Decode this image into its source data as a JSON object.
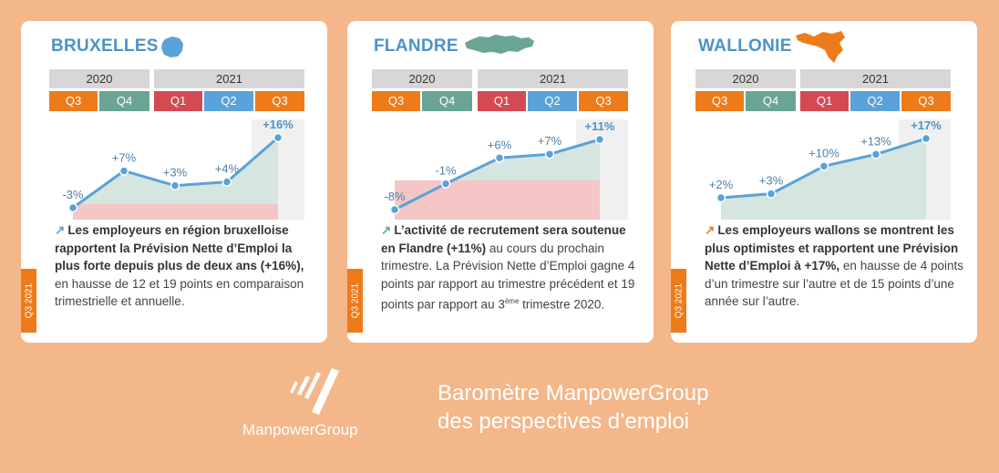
{
  "years": [
    "2020",
    "2021"
  ],
  "quarters": [
    "Q3",
    "Q4",
    "Q1",
    "Q2",
    "Q3"
  ],
  "side_tab": "Q3 2021",
  "cards": [
    {
      "region": "BRUXELLES",
      "point_labels": [
        "-3%",
        "+7%",
        "+3%",
        "+4%",
        "+16%"
      ],
      "desc_bold": "Les employeurs en région bruxelloise rapportent la Prévision Nette d’Emploi la plus forte depuis plus de deux ans (+16%),",
      "desc_rest": " en hausse de 12 et 19 points en comparaison trimestrielle et annuelle."
    },
    {
      "region": "FLANDRE",
      "point_labels": [
        "-8%",
        "-1%",
        "+6%",
        "+7%",
        "+11%"
      ],
      "desc_bold": "L’activité de recrutement sera soutenue en Flandre (+11%)",
      "desc_rest": " au cours du prochain trimestre. La Prévision Nette d’Emploi gagne 4 points par rapport au trimestre précédent et 19 points par rapport au 3",
      "desc_sup": "ème",
      "desc_end": " trimestre 2020."
    },
    {
      "region": "WALLONIE",
      "point_labels": [
        "+2%",
        "+3%",
        "+10%",
        "+13%",
        "+17%"
      ],
      "desc_bold": "Les employeurs wallons se montrent les plus optimistes et rapportent une Prévision Nette d’Emploi à +17%,",
      "desc_rest": " en hausse de 4 points d’un trimestre sur l’autre et de 15 points d’une année sur l’autre."
    }
  ],
  "footer": {
    "brand": "ManpowerGroup",
    "title_line1": "Baromètre ManpowerGroup",
    "title_line2": "des perspectives d’emploi"
  },
  "colors": {
    "background": "#f3b78a",
    "title_blue": "#4a93c9",
    "line_blue": "#5aa2d8",
    "q3_orange": "#ee7b1a",
    "q4_teal": "#6aa495",
    "q1_red": "#d44a53",
    "q2_blue": "#5aa2d8",
    "positive_fill": "#d5e6e1",
    "negative_fill": "#f4c6c6"
  },
  "chart_data": [
    {
      "type": "line",
      "title": "BRUXELLES",
      "categories": [
        "Q3 2020",
        "Q4 2020",
        "Q1 2021",
        "Q2 2021",
        "Q3 2021"
      ],
      "values": [
        -3,
        7,
        3,
        4,
        16
      ],
      "data_labels": [
        "-3%",
        "+7%",
        "+3%",
        "+4%",
        "+16%"
      ],
      "ylim": [
        -3,
        16
      ],
      "grid": false
    },
    {
      "type": "line",
      "title": "FLANDRE",
      "categories": [
        "Q3 2020",
        "Q4 2020",
        "Q1 2021",
        "Q2 2021",
        "Q3 2021"
      ],
      "values": [
        -8,
        -1,
        6,
        7,
        11
      ],
      "data_labels": [
        "-8%",
        "-1%",
        "+6%",
        "+7%",
        "+11%"
      ],
      "ylim": [
        -8,
        11
      ],
      "grid": false
    },
    {
      "type": "line",
      "title": "WALLONIE",
      "categories": [
        "Q3 2020",
        "Q4 2020",
        "Q1 2021",
        "Q2 2021",
        "Q3 2021"
      ],
      "values": [
        2,
        3,
        10,
        13,
        17
      ],
      "data_labels": [
        "+2%",
        "+3%",
        "+10%",
        "+13%",
        "+17%"
      ],
      "ylim": [
        2,
        17
      ],
      "grid": false
    }
  ]
}
